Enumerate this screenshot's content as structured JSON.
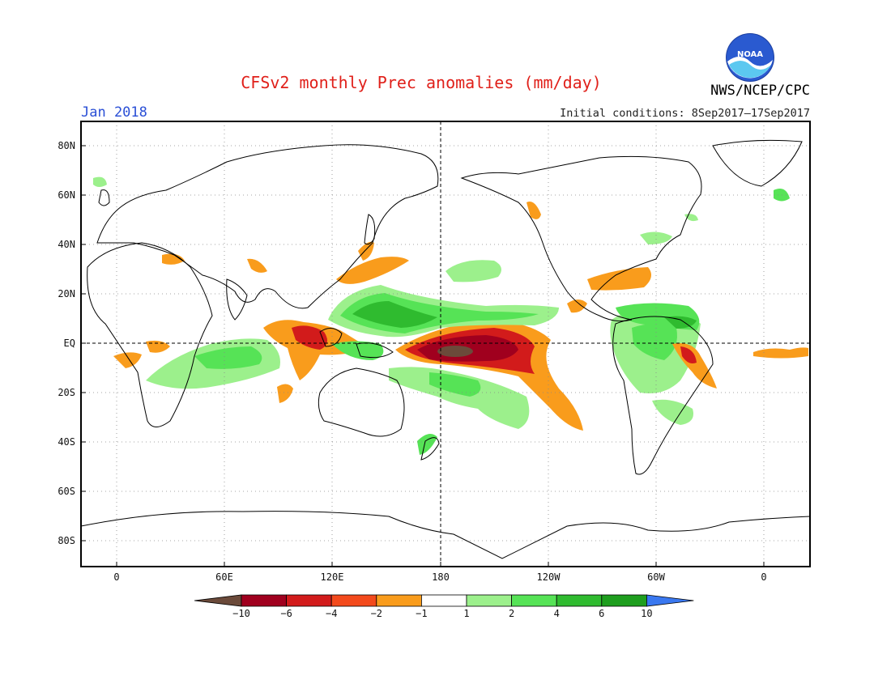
{
  "header": {
    "title": "CFSv2 monthly Prec anomalies (mm/day)",
    "period": "Jan 2018",
    "initial_conditions": "Initial conditions: 8Sep2017–17Sep2017",
    "agency": "NWS/NCEP/CPC",
    "logo_text": "NOAA"
  },
  "map": {
    "lat_labels": [
      "80N",
      "60N",
      "40N",
      "20N",
      "EQ",
      "20S",
      "40S",
      "60S",
      "80S"
    ],
    "lon_labels": [
      "0",
      "60E",
      "120E",
      "180",
      "120W",
      "60W",
      "0"
    ]
  },
  "colorbar": {
    "tick_labels": [
      "-10",
      "-6",
      "-4",
      "-2",
      "-1",
      "1",
      "2",
      "4",
      "6",
      "10"
    ],
    "colors": [
      "#6b4a3a",
      "#a0001e",
      "#d21b1b",
      "#f34a1c",
      "#f99c1c",
      "#ffffff",
      "#9cf08c",
      "#56e356",
      "#2fbb2f",
      "#1e9e1e",
      "#3a78f0"
    ]
  },
  "colors": {
    "title": "#e0201a",
    "period": "#2a4fd6"
  }
}
